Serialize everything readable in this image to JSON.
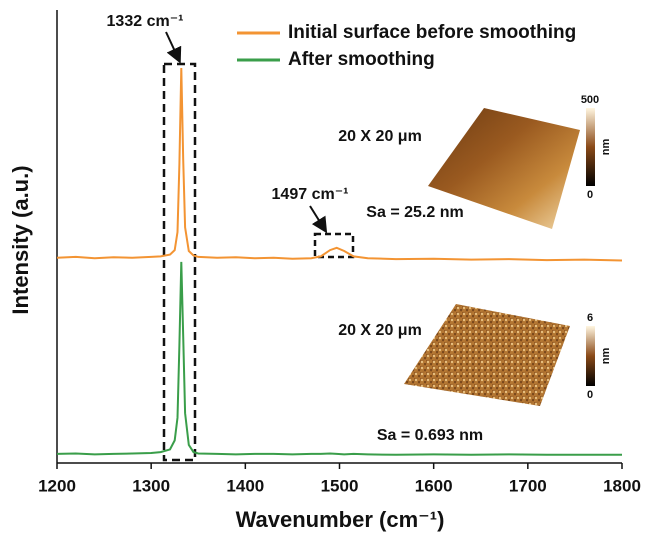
{
  "chart_data": {
    "type": "line",
    "x_label": "Wavenumber (cm⁻¹)",
    "y_label": "Intensity (a.u.)",
    "xlim": [
      1200,
      1800
    ],
    "xticks": [
      1200,
      1300,
      1400,
      1500,
      1600,
      1700,
      1800
    ],
    "ylim": [
      0,
      100
    ],
    "x": [
      1200,
      1220,
      1240,
      1260,
      1280,
      1300,
      1310,
      1320,
      1325,
      1328,
      1330,
      1332,
      1334,
      1336,
      1340,
      1345,
      1350,
      1370,
      1390,
      1410,
      1430,
      1450,
      1470,
      1480,
      1490,
      1497,
      1505,
      1515,
      1530,
      1560,
      1600,
      1640,
      1680,
      1720,
      1760,
      1800
    ],
    "series": [
      {
        "name": "Initial surface before smoothing",
        "color": "#f39433",
        "values": [
          45.3,
          45.5,
          45.2,
          45.4,
          45.3,
          45.5,
          45.6,
          46.0,
          47.0,
          51,
          66,
          87.2,
          67,
          52,
          46.8,
          45.8,
          45.5,
          45.3,
          45.4,
          45.2,
          45.3,
          45.1,
          45.2,
          45.6,
          47.0,
          47.5,
          46.8,
          45.6,
          45.2,
          45.0,
          45.1,
          44.9,
          45.0,
          44.8,
          44.9,
          44.7
        ]
      },
      {
        "name": "After smoothing",
        "color": "#3a9e4a",
        "values": [
          2.0,
          2.1,
          1.9,
          2.0,
          2.1,
          2.2,
          2.4,
          3.0,
          5,
          10,
          26,
          44.4,
          28,
          11,
          4.0,
          2.4,
          2.1,
          2.0,
          1.9,
          2.0,
          2.0,
          1.9,
          2.0,
          2.0,
          2.1,
          2.0,
          1.9,
          2.0,
          1.9,
          1.8,
          1.9,
          1.8,
          1.9,
          1.8,
          1.8,
          1.8
        ]
      }
    ],
    "annotations": [
      "1332 cm⁻¹",
      "1497 cm⁻¹"
    ],
    "insets": [
      {
        "label": "20 X 20 μm",
        "roughness": "Sa = 25.2 nm",
        "colorbar_max": 500,
        "colorbar_min": 0,
        "colorbar_unit": "nm"
      },
      {
        "label": "20 X 20 μm",
        "roughness": "Sa = 0.693 nm",
        "colorbar_max": 6,
        "colorbar_min": 0,
        "colorbar_unit": "nm"
      }
    ]
  }
}
